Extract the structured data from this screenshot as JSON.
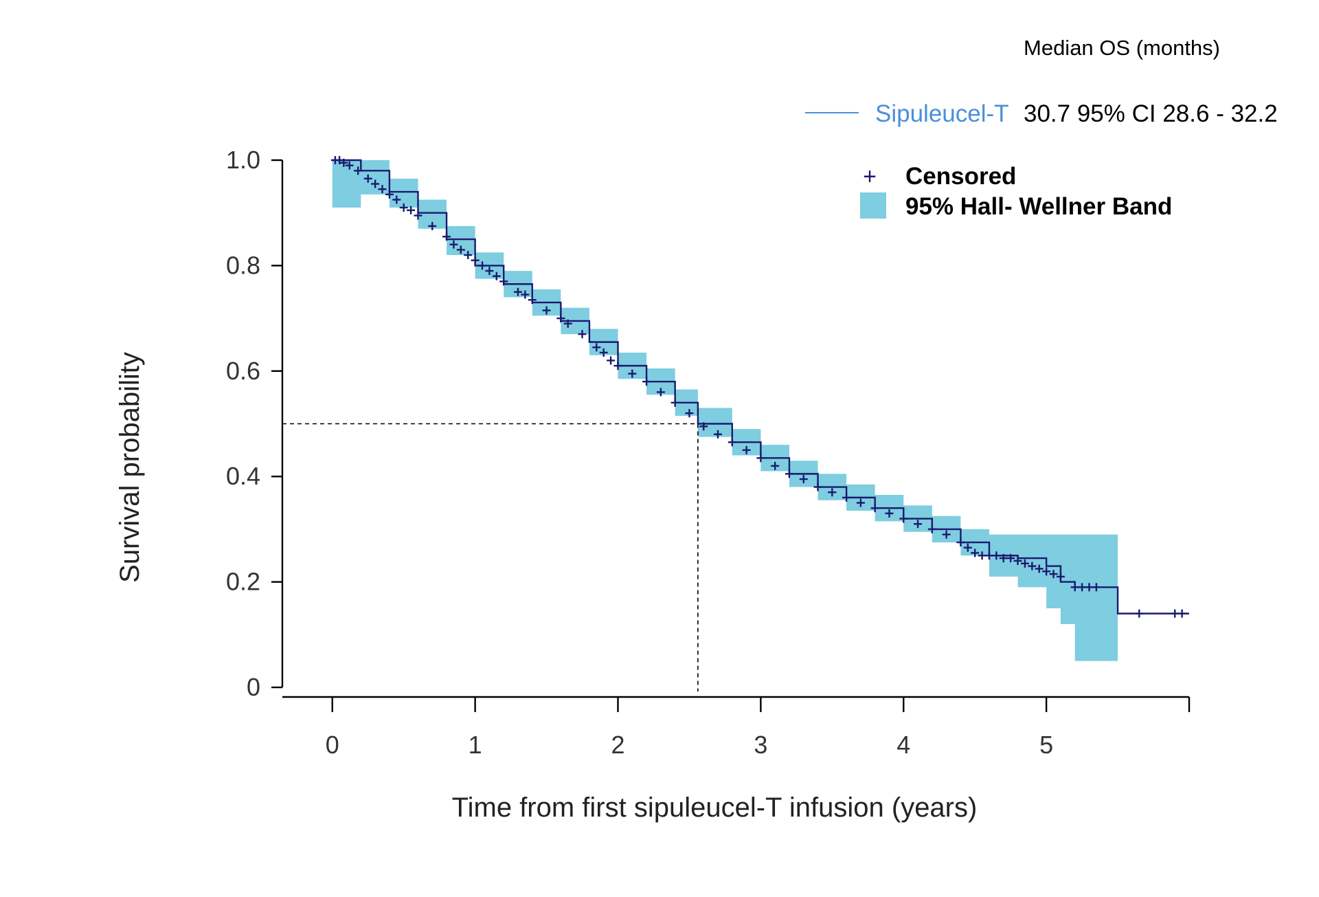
{
  "chart_data": {
    "type": "line",
    "xlabel": "Time from first sipuleucel-T infusion (years)",
    "ylabel": "Survival probability",
    "xlim": [
      -0.35,
      6.0
    ],
    "ylim": [
      0,
      1.0
    ],
    "x_ticks": [
      0,
      1,
      2,
      3,
      4,
      5
    ],
    "y_ticks": [
      0,
      0.2,
      0.4,
      0.6,
      0.8,
      1.0
    ],
    "x_tick_labels": [
      "0",
      "1",
      "2",
      "3",
      "4",
      "5"
    ],
    "y_tick_labels": [
      "0",
      "0.2",
      "0.4",
      "0.6",
      "0.8",
      "1.0"
    ],
    "grid": false,
    "legend": {
      "header": "Median OS (months)",
      "series_name": "Sipuleucel-T",
      "series_stat": "30.7 95% CI 28.6 - 32.2",
      "censored_label": "Censored",
      "band_label": "95% Hall- Wellner Band",
      "placement": "top-right"
    },
    "median_line": {
      "x": 2.56,
      "y": 0.5
    },
    "series": [
      {
        "name": "Sipuleucel-T",
        "color": "#1a1a6e",
        "x": [
          0,
          0.2,
          0.4,
          0.6,
          0.8,
          1.0,
          1.2,
          1.4,
          1.6,
          1.8,
          2.0,
          2.2,
          2.4,
          2.56,
          2.8,
          3.0,
          3.2,
          3.4,
          3.6,
          3.8,
          4.0,
          4.2,
          4.4,
          4.6,
          4.8,
          5.0,
          5.1,
          5.2,
          5.5,
          6.0
        ],
        "y": [
          1.0,
          0.98,
          0.94,
          0.9,
          0.85,
          0.8,
          0.765,
          0.73,
          0.695,
          0.655,
          0.61,
          0.58,
          0.54,
          0.5,
          0.465,
          0.435,
          0.405,
          0.38,
          0.36,
          0.34,
          0.32,
          0.3,
          0.275,
          0.25,
          0.245,
          0.23,
          0.2,
          0.19,
          0.14,
          0.14
        ]
      }
    ],
    "band": {
      "color": "#7ecde0",
      "x": [
        0,
        0.2,
        0.4,
        0.6,
        0.8,
        1.0,
        1.2,
        1.4,
        1.6,
        1.8,
        2.0,
        2.2,
        2.4,
        2.56,
        2.8,
        3.0,
        3.2,
        3.4,
        3.6,
        3.8,
        4.0,
        4.2,
        4.4,
        4.6,
        4.8,
        5.0,
        5.1,
        5.2,
        5.5
      ],
      "upper": [
        1.0,
        1.0,
        0.965,
        0.925,
        0.875,
        0.825,
        0.79,
        0.755,
        0.72,
        0.68,
        0.635,
        0.605,
        0.565,
        0.53,
        0.49,
        0.46,
        0.43,
        0.405,
        0.385,
        0.365,
        0.345,
        0.325,
        0.3,
        0.29,
        0.29,
        0.29,
        0.29,
        0.29,
        0.29
      ],
      "lower": [
        0.91,
        0.935,
        0.91,
        0.87,
        0.82,
        0.775,
        0.74,
        0.705,
        0.67,
        0.63,
        0.585,
        0.555,
        0.515,
        0.475,
        0.44,
        0.41,
        0.38,
        0.355,
        0.335,
        0.315,
        0.295,
        0.275,
        0.25,
        0.21,
        0.19,
        0.15,
        0.12,
        0.05,
        0.05
      ]
    },
    "censored": {
      "x": [
        0.02,
        0.05,
        0.08,
        0.12,
        0.18,
        0.25,
        0.3,
        0.35,
        0.4,
        0.45,
        0.5,
        0.55,
        0.6,
        0.7,
        0.8,
        0.85,
        0.9,
        0.95,
        1.0,
        1.05,
        1.1,
        1.15,
        1.2,
        1.3,
        1.35,
        1.4,
        1.5,
        1.6,
        1.65,
        1.75,
        1.85,
        1.9,
        1.95,
        2.0,
        2.1,
        2.2,
        2.3,
        2.4,
        2.5,
        2.6,
        2.7,
        2.8,
        2.9,
        3.0,
        3.1,
        3.2,
        3.3,
        3.4,
        3.5,
        3.6,
        3.7,
        3.8,
        3.9,
        4.0,
        4.1,
        4.2,
        4.3,
        4.4,
        4.45,
        4.5,
        4.55,
        4.6,
        4.65,
        4.7,
        4.75,
        4.8,
        4.85,
        4.9,
        4.95,
        5.0,
        5.05,
        5.1,
        5.2,
        5.25,
        5.3,
        5.35,
        5.65,
        5.9,
        5.95
      ],
      "y": [
        1.0,
        1.0,
        0.995,
        0.99,
        0.98,
        0.965,
        0.955,
        0.945,
        0.935,
        0.925,
        0.91,
        0.905,
        0.895,
        0.875,
        0.855,
        0.84,
        0.83,
        0.82,
        0.81,
        0.8,
        0.79,
        0.78,
        0.77,
        0.75,
        0.745,
        0.735,
        0.715,
        0.7,
        0.69,
        0.67,
        0.645,
        0.635,
        0.62,
        0.61,
        0.595,
        0.58,
        0.56,
        0.54,
        0.52,
        0.495,
        0.48,
        0.465,
        0.45,
        0.435,
        0.42,
        0.405,
        0.395,
        0.38,
        0.37,
        0.36,
        0.35,
        0.34,
        0.33,
        0.32,
        0.31,
        0.3,
        0.29,
        0.275,
        0.265,
        0.255,
        0.25,
        0.25,
        0.25,
        0.245,
        0.245,
        0.24,
        0.235,
        0.23,
        0.225,
        0.22,
        0.215,
        0.21,
        0.19,
        0.19,
        0.19,
        0.19,
        0.14,
        0.14,
        0.14
      ]
    }
  }
}
